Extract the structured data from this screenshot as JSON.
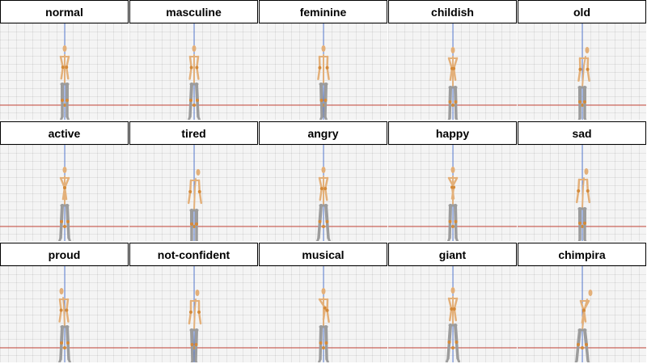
{
  "colors": {
    "axis_vertical": "#5b7fd6",
    "ground_line": "#c84a3c",
    "bone_upper": "#e3b07a",
    "bone_lower": "#9c9c9c",
    "joint": "#d48a3a"
  },
  "panels": [
    {
      "label": "normal",
      "pose": "normal"
    },
    {
      "label": "masculine",
      "pose": "masculine"
    },
    {
      "label": "feminine",
      "pose": "feminine"
    },
    {
      "label": "childish",
      "pose": "childish"
    },
    {
      "label": "old",
      "pose": "old"
    },
    {
      "label": "active",
      "pose": "active"
    },
    {
      "label": "tired",
      "pose": "tired"
    },
    {
      "label": "angry",
      "pose": "angry"
    },
    {
      "label": "happy",
      "pose": "happy"
    },
    {
      "label": "sad",
      "pose": "sad"
    },
    {
      "label": "proud",
      "pose": "proud"
    },
    {
      "label": "not-confident",
      "pose": "not-confident"
    },
    {
      "label": "musical",
      "pose": "musical"
    },
    {
      "label": "giant",
      "pose": "giant"
    },
    {
      "label": "chimpira",
      "pose": "chimpira"
    }
  ]
}
